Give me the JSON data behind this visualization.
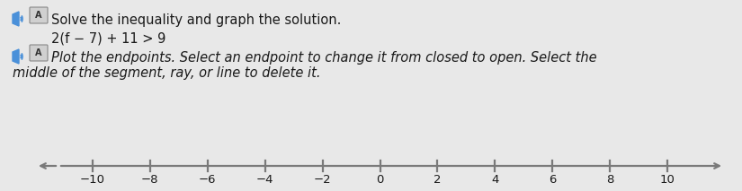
{
  "title_line1": "Solve the inequality and graph the solution.",
  "equation": "2(f − 7) + 11 > 9",
  "instruction_line1": "Plot the endpoints. Select an endpoint to change it from closed to open. Select the",
  "instruction_line2": "middle of the segment, ray, or line to delete it.",
  "tick_positions": [
    -10,
    -8,
    -6,
    -4,
    -2,
    0,
    2,
    4,
    6,
    8,
    10
  ],
  "tick_labels": [
    "−10",
    "−8",
    "−6",
    "−4",
    "−2",
    "0",
    "2",
    "4",
    "6",
    "8",
    "10"
  ],
  "background_color": "#e8e8e8",
  "text_color": "#1a1a1a",
  "line_color": "#7a7a7a",
  "title_fontsize": 10.5,
  "eq_fontsize": 10.5,
  "instr_fontsize": 10.5,
  "tick_fontsize": 9.5,
  "fig_width": 8.25,
  "fig_height": 2.13,
  "dpi": 100
}
